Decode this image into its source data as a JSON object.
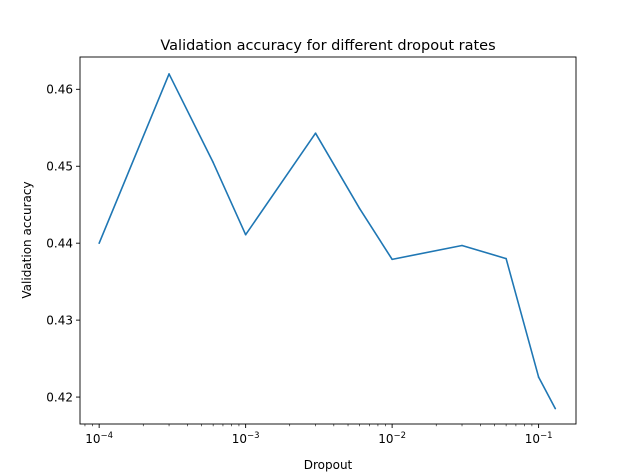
{
  "chart_data": {
    "type": "line",
    "title": "Validation accuracy for different dropout rates",
    "xlabel": "Dropout",
    "ylabel": "Validation accuracy",
    "xscale": "log",
    "xlim": [
      7.4e-05,
      0.18
    ],
    "ylim": [
      0.4165,
      0.4642
    ],
    "grid": false,
    "legend": "none",
    "line_color": "#1f77b4",
    "x_ticks": [
      {
        "value": 0.0001,
        "base": "10",
        "exp": "−4"
      },
      {
        "value": 0.001,
        "base": "10",
        "exp": "−3"
      },
      {
        "value": 0.01,
        "base": "10",
        "exp": "−2"
      },
      {
        "value": 0.1,
        "base": "10",
        "exp": "−1"
      }
    ],
    "y_ticks": [
      {
        "value": 0.42,
        "label": "0.42"
      },
      {
        "value": 0.43,
        "label": "0.43"
      },
      {
        "value": 0.44,
        "label": "0.44"
      },
      {
        "value": 0.45,
        "label": "0.45"
      },
      {
        "value": 0.46,
        "label": "0.46"
      }
    ],
    "series": [
      {
        "x": [
          0.0001,
          0.0003,
          0.0006,
          0.001,
          0.003,
          0.006,
          0.01,
          0.03,
          0.06,
          0.1,
          0.13
        ],
        "y": [
          0.44,
          0.462,
          0.4505,
          0.4411,
          0.4543,
          0.4445,
          0.4379,
          0.4397,
          0.438,
          0.4226,
          0.4185
        ]
      }
    ]
  }
}
